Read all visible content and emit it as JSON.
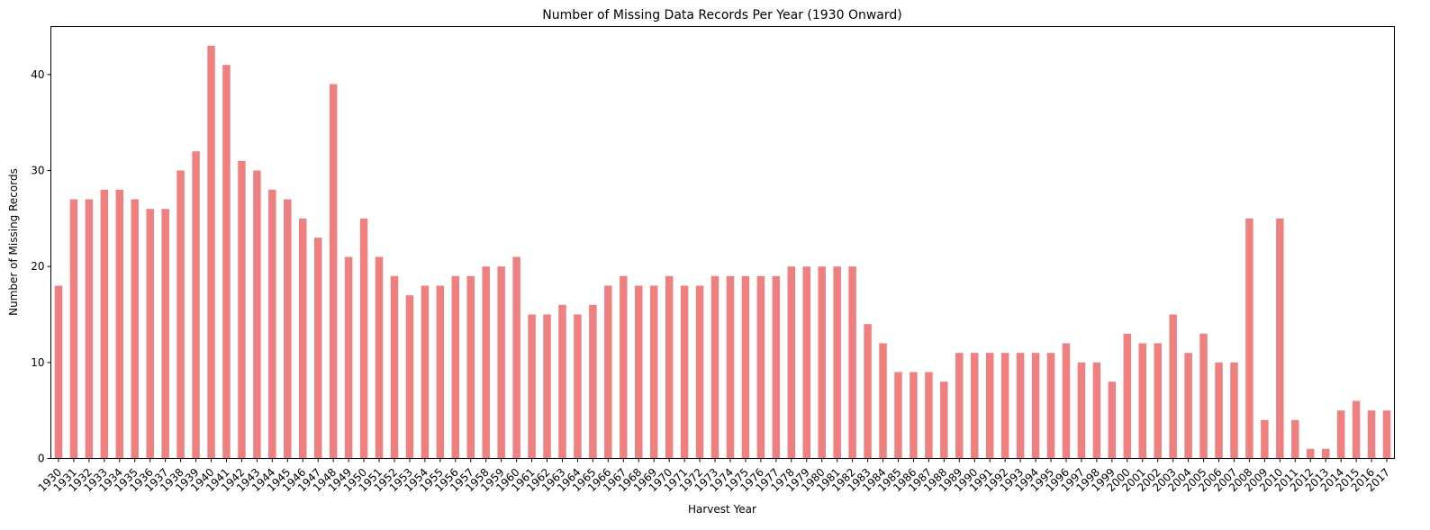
{
  "chart_data": {
    "type": "bar",
    "title": "Number of Missing Data Records Per Year (1930 Onward)",
    "xlabel": "Harvest Year",
    "ylabel": "Number of Missing Records",
    "ylim": [
      0,
      45
    ],
    "yticks": [
      0,
      10,
      20,
      30,
      40
    ],
    "grid": false,
    "bar_color": "#f08080",
    "categories": [
      "1930",
      "1931",
      "1932",
      "1933",
      "1934",
      "1935",
      "1936",
      "1937",
      "1938",
      "1939",
      "1940",
      "1941",
      "1942",
      "1943",
      "1944",
      "1945",
      "1946",
      "1947",
      "1948",
      "1949",
      "1950",
      "1951",
      "1952",
      "1953",
      "1954",
      "1955",
      "1956",
      "1957",
      "1958",
      "1959",
      "1960",
      "1961",
      "1962",
      "1963",
      "1964",
      "1965",
      "1966",
      "1967",
      "1968",
      "1969",
      "1970",
      "1971",
      "1972",
      "1973",
      "1974",
      "1975",
      "1976",
      "1977",
      "1978",
      "1979",
      "1980",
      "1981",
      "1982",
      "1983",
      "1984",
      "1985",
      "1986",
      "1987",
      "1988",
      "1989",
      "1990",
      "1991",
      "1992",
      "1993",
      "1994",
      "1995",
      "1996",
      "1997",
      "1998",
      "1999",
      "2000",
      "2001",
      "2002",
      "2003",
      "2004",
      "2005",
      "2006",
      "2007",
      "2008",
      "2009",
      "2010",
      "2011",
      "2012",
      "2013",
      "2014",
      "2015",
      "2016",
      "2017"
    ],
    "values": [
      18,
      27,
      27,
      28,
      28,
      27,
      26,
      26,
      30,
      32,
      43,
      41,
      31,
      30,
      28,
      27,
      25,
      23,
      39,
      21,
      25,
      21,
      19,
      17,
      18,
      18,
      19,
      19,
      20,
      20,
      21,
      15,
      15,
      16,
      15,
      16,
      18,
      19,
      18,
      18,
      19,
      18,
      18,
      19,
      19,
      19,
      19,
      19,
      20,
      20,
      20,
      20,
      20,
      14,
      12,
      9,
      9,
      9,
      8,
      11,
      11,
      11,
      11,
      11,
      11,
      11,
      12,
      10,
      10,
      8,
      13,
      12,
      12,
      15,
      11,
      13,
      10,
      10,
      25,
      4,
      25,
      4,
      1,
      1,
      5,
      6,
      5,
      5
    ]
  }
}
